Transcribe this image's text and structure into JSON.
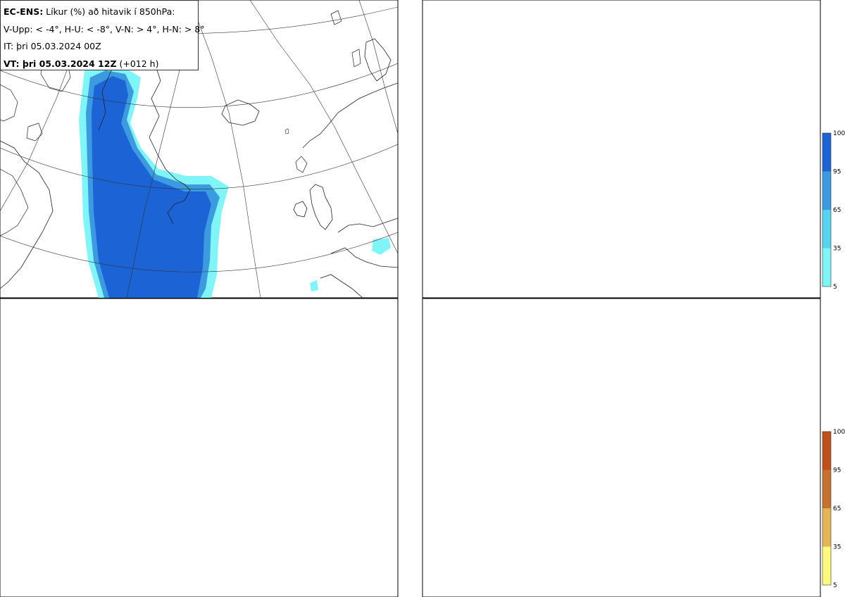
{
  "header": {
    "line1_bold": "EC-ENS:",
    "line1_rest": " Líkur (%) að hitavik í 850hPa:",
    "line2": "V-Upp: < -4°, H-U: < -8°, V-N: > 4°, H-N: > 8°",
    "line3": "IT: þri 05.03.2024 00Z",
    "line4_bold": "VT: þri 05.03.2024 12Z",
    "line4_rest": " (+012 h)"
  },
  "panels": [
    {
      "id": "v-upp",
      "colorbar": "blue"
    },
    {
      "id": "h-u",
      "colorbar": "blue"
    },
    {
      "id": "v-n",
      "colorbar": "brown"
    },
    {
      "id": "h-n",
      "colorbar": "brown"
    }
  ],
  "colorbar": {
    "ticks": [
      "100",
      "95",
      "65",
      "35",
      "5"
    ],
    "blue_colors": [
      "#ffffff",
      "#7ff5f7",
      "#55d3ef",
      "#3c9ae0",
      "#1c63d6"
    ],
    "brown_colors": [
      "#fff97d",
      "#f8e67d",
      "#e3b556",
      "#c8702e",
      "#c14f1a"
    ]
  },
  "colors": {
    "land_outline": "#222222",
    "grid": "#333333",
    "blue_light": "#7ff5f7",
    "blue_mid": "#3c9ae0",
    "blue_dark": "#1c63d6",
    "brown_light": "#fffa82",
    "brown_mid": "#e8b660",
    "brown_dark": "#c14f1a"
  }
}
